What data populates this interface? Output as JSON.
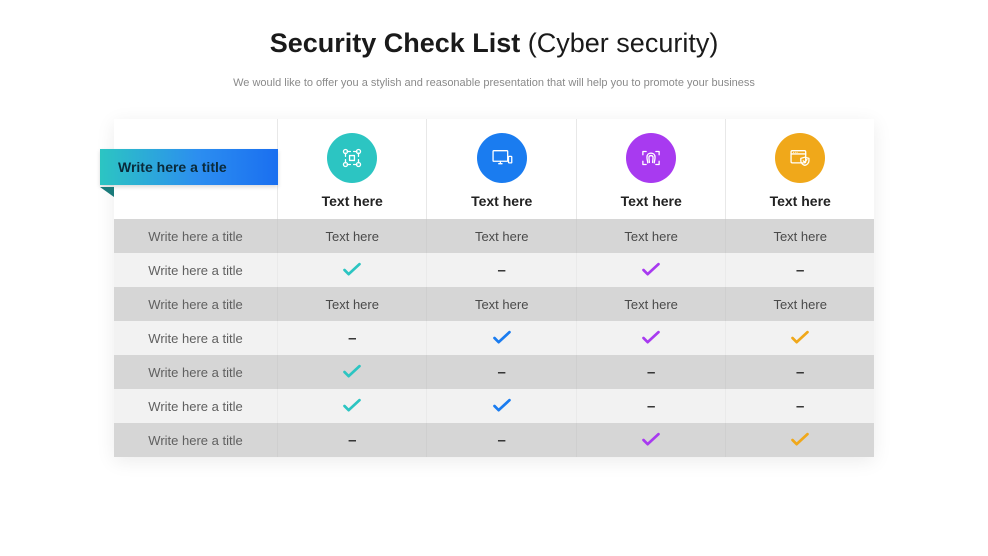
{
  "title_bold": "Security Check List",
  "title_light": " (Cyber security)",
  "subtitle": "We would like to offer you a stylish and reasonable presentation that will help you to promote your business",
  "ribbon_label": "Write here a title",
  "columns": [
    {
      "label": "Text here",
      "circle_color": "#2cc5c2",
      "check_color": "#2cc5c2",
      "icon": "network"
    },
    {
      "label": "Text here",
      "circle_color": "#1a7cf0",
      "check_color": "#1a7cf0",
      "icon": "computer"
    },
    {
      "label": "Text here",
      "circle_color": "#a83af0",
      "check_color": "#a83af0",
      "icon": "fingerprint"
    },
    {
      "label": "Text here",
      "circle_color": "#f0a81a",
      "check_color": "#f0a81a",
      "icon": "browser-shield"
    }
  ],
  "rows": [
    {
      "title": "Write here a title",
      "shade": "dark",
      "cells": [
        "text",
        "text",
        "text",
        "text"
      ]
    },
    {
      "title": "Write here a title",
      "shade": "light",
      "cells": [
        "check",
        "dash",
        "check",
        "dash"
      ]
    },
    {
      "title": "Write here a title",
      "shade": "dark",
      "cells": [
        "text",
        "text",
        "text",
        "text"
      ]
    },
    {
      "title": "Write here a title",
      "shade": "light",
      "cells": [
        "dash",
        "check",
        "check",
        "check"
      ]
    },
    {
      "title": "Write here a title",
      "shade": "dark",
      "cells": [
        "check",
        "dash",
        "dash",
        "dash"
      ]
    },
    {
      "title": "Write here a title",
      "shade": "light",
      "cells": [
        "check",
        "check",
        "dash",
        "dash"
      ]
    },
    {
      "title": "Write here a title",
      "shade": "dark",
      "cells": [
        "dash",
        "dash",
        "check",
        "check"
      ]
    }
  ],
  "cell_text": "Text here",
  "dash_glyph": "–"
}
